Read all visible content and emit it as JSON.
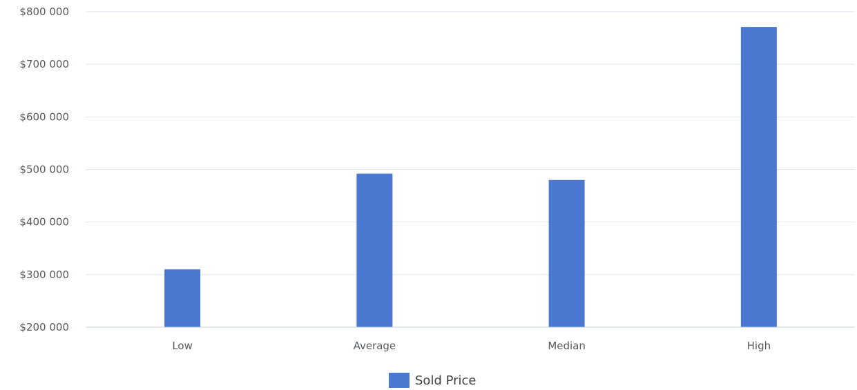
{
  "chart_data": {
    "type": "bar",
    "categories": [
      "Low",
      "Average",
      "Median",
      "High"
    ],
    "series": [
      {
        "name": "Sold Price",
        "values": [
          310000,
          492000,
          480000,
          771000
        ],
        "color": "#4a78d0"
      }
    ],
    "yticks": [
      "$800 000",
      "$700 000",
      "$600 000",
      "$500 000",
      "$400 000",
      "$300 000",
      "$200 000"
    ],
    "ylim": [
      200000,
      800000
    ],
    "grid": true,
    "legend_position": "bottom-center",
    "title": "",
    "xlabel": "",
    "ylabel": ""
  }
}
